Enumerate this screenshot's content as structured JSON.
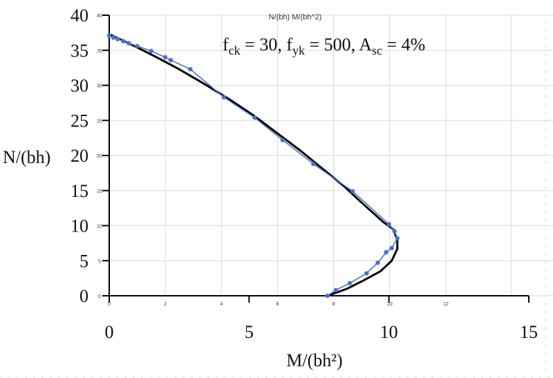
{
  "chart_data": {
    "type": "line",
    "title": "N/(bh) M/(bh^2)",
    "xlabel": "M/(bh²)",
    "ylabel": "N/(bh)",
    "annotation": {
      "parts": [
        {
          "text": "f",
          "style": "normal"
        },
        {
          "text": "ck",
          "style": "sub"
        },
        {
          "text": " = 30, f",
          "style": "normal"
        },
        {
          "text": "yk",
          "style": "sub"
        },
        {
          "text": " = 500, A",
          "style": "normal"
        },
        {
          "text": "sc",
          "style": "sub"
        },
        {
          "text": " = 4%",
          "style": "normal"
        }
      ]
    },
    "xlim": [
      0,
      15
    ],
    "ylim": [
      0,
      40
    ],
    "x_ticks": [
      "0",
      "5",
      "10",
      "15"
    ],
    "y_ticks": [
      "0",
      "5",
      "10",
      "15",
      "20",
      "25",
      "30",
      "35",
      "40"
    ],
    "inner_xlim": [
      0,
      15
    ],
    "inner_x_ticks": [
      "0",
      "2",
      "4",
      "6",
      "8",
      "10",
      "12"
    ],
    "inner_y_ticks": [
      "0",
      "5",
      "10",
      "15",
      "20",
      "25",
      "30",
      "35",
      "40"
    ],
    "grid": true,
    "series": [
      {
        "color": "#000000",
        "marker": false,
        "x": [
          0.05,
          0.8,
          1.6,
          2.5,
          3.4,
          4.3,
          5.2,
          6.0,
          6.8,
          7.6,
          8.4,
          9.1,
          9.8,
          10.15,
          10.3,
          10.3,
          10.1,
          9.7,
          9.1,
          8.5,
          7.8
        ],
        "y": [
          37.2,
          35.8,
          34.2,
          32.3,
          30.2,
          28.0,
          25.6,
          23.2,
          20.8,
          18.2,
          15.6,
          13.0,
          10.5,
          9.5,
          8.0,
          6.7,
          5.0,
          3.5,
          2.2,
          1.0,
          0.0
        ]
      },
      {
        "color": "#4a72c6",
        "marker": true,
        "x": [
          0.0,
          0.15,
          0.3,
          0.5,
          0.7,
          1.0,
          1.5,
          2.0,
          2.2,
          2.9,
          4.1,
          5.2,
          6.2,
          7.3,
          8.7,
          10.0,
          10.2,
          10.3,
          10.1,
          9.9,
          9.6,
          9.2,
          8.6,
          8.1,
          7.8
        ],
        "y": [
          37.1,
          36.8,
          36.6,
          36.3,
          36.0,
          35.6,
          34.9,
          34.0,
          33.6,
          32.3,
          28.3,
          25.4,
          22.2,
          18.8,
          14.9,
          10.2,
          9.2,
          8.2,
          6.8,
          6.2,
          4.7,
          3.2,
          1.8,
          0.8,
          0.0
        ]
      }
    ]
  }
}
